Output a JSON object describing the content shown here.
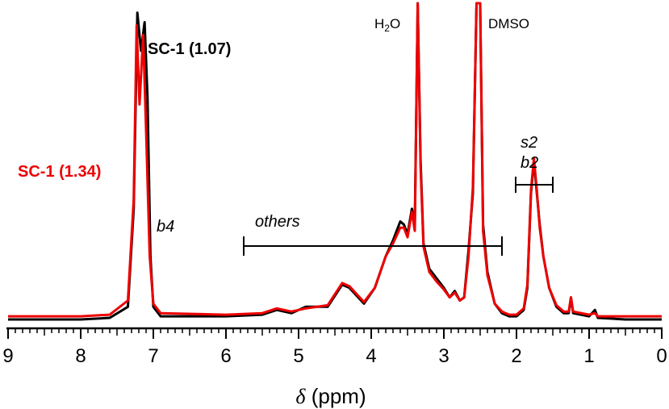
{
  "chart_data": {
    "type": "line",
    "title": "",
    "xlabel_symbol": "δ",
    "xlabel_unit": " (ppm)",
    "xlim": [
      9,
      0
    ],
    "ylim": [
      0,
      1
    ],
    "x_ticks": [
      "9",
      "8",
      "7",
      "6",
      "5",
      "4",
      "3",
      "2",
      "1",
      "0"
    ],
    "x_tick_values": [
      9,
      8,
      7,
      6,
      5,
      4,
      3,
      2,
      1,
      0
    ],
    "series": [
      {
        "name": "SC-1 (1.07)",
        "color": "#000000",
        "points": [
          [
            9.0,
            0.0
          ],
          [
            8.0,
            0.0
          ],
          [
            7.6,
            0.005
          ],
          [
            7.35,
            0.04
          ],
          [
            7.27,
            0.35
          ],
          [
            7.22,
            0.97
          ],
          [
            7.17,
            0.85
          ],
          [
            7.12,
            0.94
          ],
          [
            7.08,
            0.7
          ],
          [
            7.04,
            0.2
          ],
          [
            7.0,
            0.04
          ],
          [
            6.9,
            0.01
          ],
          [
            6.0,
            0.01
          ],
          [
            5.5,
            0.015
          ],
          [
            5.3,
            0.03
          ],
          [
            5.1,
            0.02
          ],
          [
            4.9,
            0.04
          ],
          [
            4.6,
            0.04
          ],
          [
            4.4,
            0.11
          ],
          [
            4.3,
            0.1
          ],
          [
            4.1,
            0.05
          ],
          [
            3.95,
            0.1
          ],
          [
            3.8,
            0.2
          ],
          [
            3.7,
            0.25
          ],
          [
            3.6,
            0.31
          ],
          [
            3.55,
            0.3
          ],
          [
            3.5,
            0.27
          ],
          [
            3.44,
            0.35
          ],
          [
            3.4,
            0.3
          ],
          [
            3.36,
            1.0
          ],
          [
            3.32,
            0.5
          ],
          [
            3.28,
            0.24
          ],
          [
            3.2,
            0.16
          ],
          [
            3.1,
            0.13
          ],
          [
            3.0,
            0.1
          ],
          [
            2.92,
            0.07
          ],
          [
            2.85,
            0.09
          ],
          [
            2.78,
            0.06
          ],
          [
            2.72,
            0.07
          ],
          [
            2.66,
            0.22
          ],
          [
            2.6,
            0.4
          ],
          [
            2.55,
            1.0
          ],
          [
            2.5,
            1.0
          ],
          [
            2.46,
            0.3
          ],
          [
            2.4,
            0.15
          ],
          [
            2.3,
            0.05
          ],
          [
            2.2,
            0.02
          ],
          [
            2.1,
            0.01
          ],
          [
            2.0,
            0.01
          ],
          [
            1.9,
            0.03
          ],
          [
            1.85,
            0.1
          ],
          [
            1.8,
            0.4
          ],
          [
            1.76,
            0.5
          ],
          [
            1.72,
            0.4
          ],
          [
            1.68,
            0.3
          ],
          [
            1.63,
            0.2
          ],
          [
            1.55,
            0.1
          ],
          [
            1.45,
            0.04
          ],
          [
            1.35,
            0.02
          ],
          [
            1.28,
            0.02
          ],
          [
            1.25,
            0.07
          ],
          [
            1.22,
            0.02
          ],
          [
            1.0,
            0.01
          ],
          [
            0.92,
            0.03
          ],
          [
            0.88,
            0.005
          ],
          [
            0.5,
            0.0
          ],
          [
            0.0,
            0.0
          ]
        ]
      },
      {
        "name": "SC-1 (1.34)",
        "color": "#ee0000",
        "points": [
          [
            9.0,
            0.01
          ],
          [
            8.0,
            0.01
          ],
          [
            7.6,
            0.015
          ],
          [
            7.35,
            0.06
          ],
          [
            7.27,
            0.38
          ],
          [
            7.23,
            0.93
          ],
          [
            7.19,
            0.68
          ],
          [
            7.14,
            0.9
          ],
          [
            7.1,
            0.6
          ],
          [
            7.05,
            0.2
          ],
          [
            7.0,
            0.05
          ],
          [
            6.9,
            0.02
          ],
          [
            6.0,
            0.015
          ],
          [
            5.5,
            0.02
          ],
          [
            5.3,
            0.035
          ],
          [
            5.1,
            0.025
          ],
          [
            4.9,
            0.035
          ],
          [
            4.6,
            0.045
          ],
          [
            4.4,
            0.115
          ],
          [
            4.3,
            0.105
          ],
          [
            4.1,
            0.055
          ],
          [
            3.95,
            0.1
          ],
          [
            3.8,
            0.2
          ],
          [
            3.7,
            0.24
          ],
          [
            3.6,
            0.29
          ],
          [
            3.55,
            0.29
          ],
          [
            3.5,
            0.26
          ],
          [
            3.44,
            0.34
          ],
          [
            3.4,
            0.28
          ],
          [
            3.36,
            1.0
          ],
          [
            3.32,
            0.48
          ],
          [
            3.28,
            0.23
          ],
          [
            3.2,
            0.15
          ],
          [
            3.1,
            0.12
          ],
          [
            3.0,
            0.095
          ],
          [
            2.92,
            0.07
          ],
          [
            2.85,
            0.085
          ],
          [
            2.78,
            0.06
          ],
          [
            2.72,
            0.07
          ],
          [
            2.66,
            0.2
          ],
          [
            2.6,
            0.42
          ],
          [
            2.55,
            1.0
          ],
          [
            2.5,
            1.0
          ],
          [
            2.46,
            0.28
          ],
          [
            2.4,
            0.14
          ],
          [
            2.3,
            0.05
          ],
          [
            2.2,
            0.025
          ],
          [
            2.1,
            0.015
          ],
          [
            2.0,
            0.015
          ],
          [
            1.9,
            0.035
          ],
          [
            1.85,
            0.11
          ],
          [
            1.8,
            0.41
          ],
          [
            1.76,
            0.51
          ],
          [
            1.72,
            0.41
          ],
          [
            1.68,
            0.29
          ],
          [
            1.63,
            0.2
          ],
          [
            1.55,
            0.1
          ],
          [
            1.45,
            0.045
          ],
          [
            1.35,
            0.025
          ],
          [
            1.28,
            0.025
          ],
          [
            1.25,
            0.07
          ],
          [
            1.22,
            0.025
          ],
          [
            1.0,
            0.015
          ],
          [
            0.92,
            0.02
          ],
          [
            0.88,
            0.01
          ],
          [
            0.5,
            0.01
          ],
          [
            0.0,
            0.01
          ]
        ]
      }
    ],
    "annotations": {
      "label_black": "SC-1 (1.07)",
      "label_red": "SC-1 (1.34)",
      "peak_b4": "b4",
      "peak_others": "others",
      "peak_s2": "s2",
      "peak_b2": "b2",
      "solvent_water_base": "H",
      "solvent_water_sub": "2",
      "solvent_water_end": "O",
      "solvent_dmso": "DMSO"
    },
    "brackets": [
      {
        "name": "others",
        "from": 5.75,
        "to": 2.2
      },
      {
        "name": "s2-b2",
        "from": 2.0,
        "to": 1.48
      }
    ]
  }
}
